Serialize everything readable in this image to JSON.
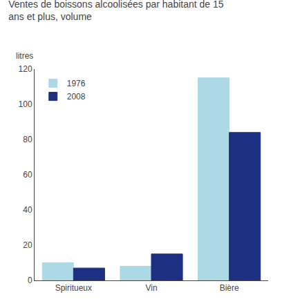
{
  "chart_data": {
    "type": "bar",
    "title": "Ventes de boissons alcoolisées par habitant de 15\nans et plus, volume",
    "ylabel": "litres",
    "categories": [
      "Spiritueux",
      "Vin",
      "Bière"
    ],
    "series": [
      {
        "name": "1976",
        "values": [
          10,
          8,
          115
        ],
        "color": "#ADD8E6"
      },
      {
        "name": "2008",
        "values": [
          7,
          15,
          84
        ],
        "color": "#1C2F80"
      }
    ],
    "ylim": [
      0,
      120
    ],
    "yticks": [
      0,
      20,
      40,
      60,
      80,
      100,
      120
    ],
    "legend": "upper left",
    "grid": false
  }
}
